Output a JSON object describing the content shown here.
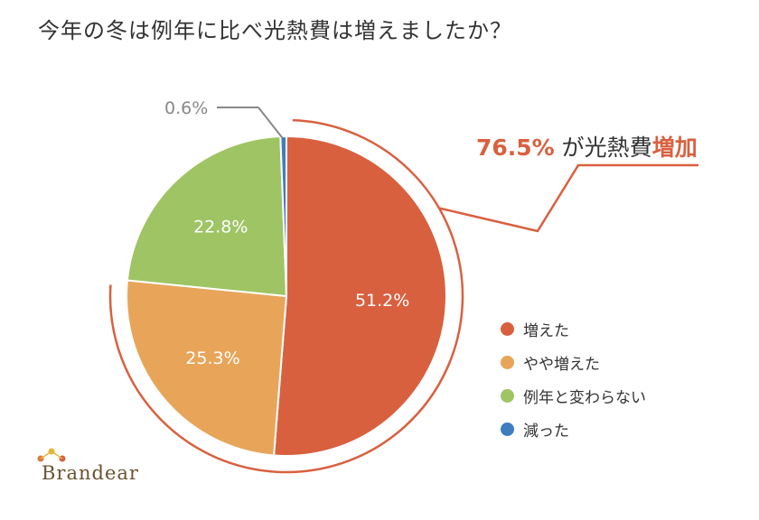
{
  "chart_data": {
    "type": "pie",
    "title": "今年の冬は例年に比べ光熱費は増えましたか？",
    "categories": [
      "増えた",
      "やや増えた",
      "例年と変わらない",
      "減った"
    ],
    "values": [
      51.2,
      25.3,
      22.8,
      0.6
    ],
    "labels": [
      "51.2%",
      "25.3%",
      "22.8%",
      "0.6%"
    ],
    "colors": [
      "#d9603f",
      "#e8a55a",
      "#9fc464",
      "#3f7dbf"
    ],
    "start_angle_deg": 0,
    "direction": "clockwise",
    "legend_position": "right",
    "callout": {
      "value_text": "76.5%",
      "middle_text": " が光熱費",
      "highlight_text": "増加",
      "color": "#d9603f",
      "text_color": "#333333"
    }
  },
  "logo": {
    "text": "Brandear",
    "color": "#6a5230"
  }
}
